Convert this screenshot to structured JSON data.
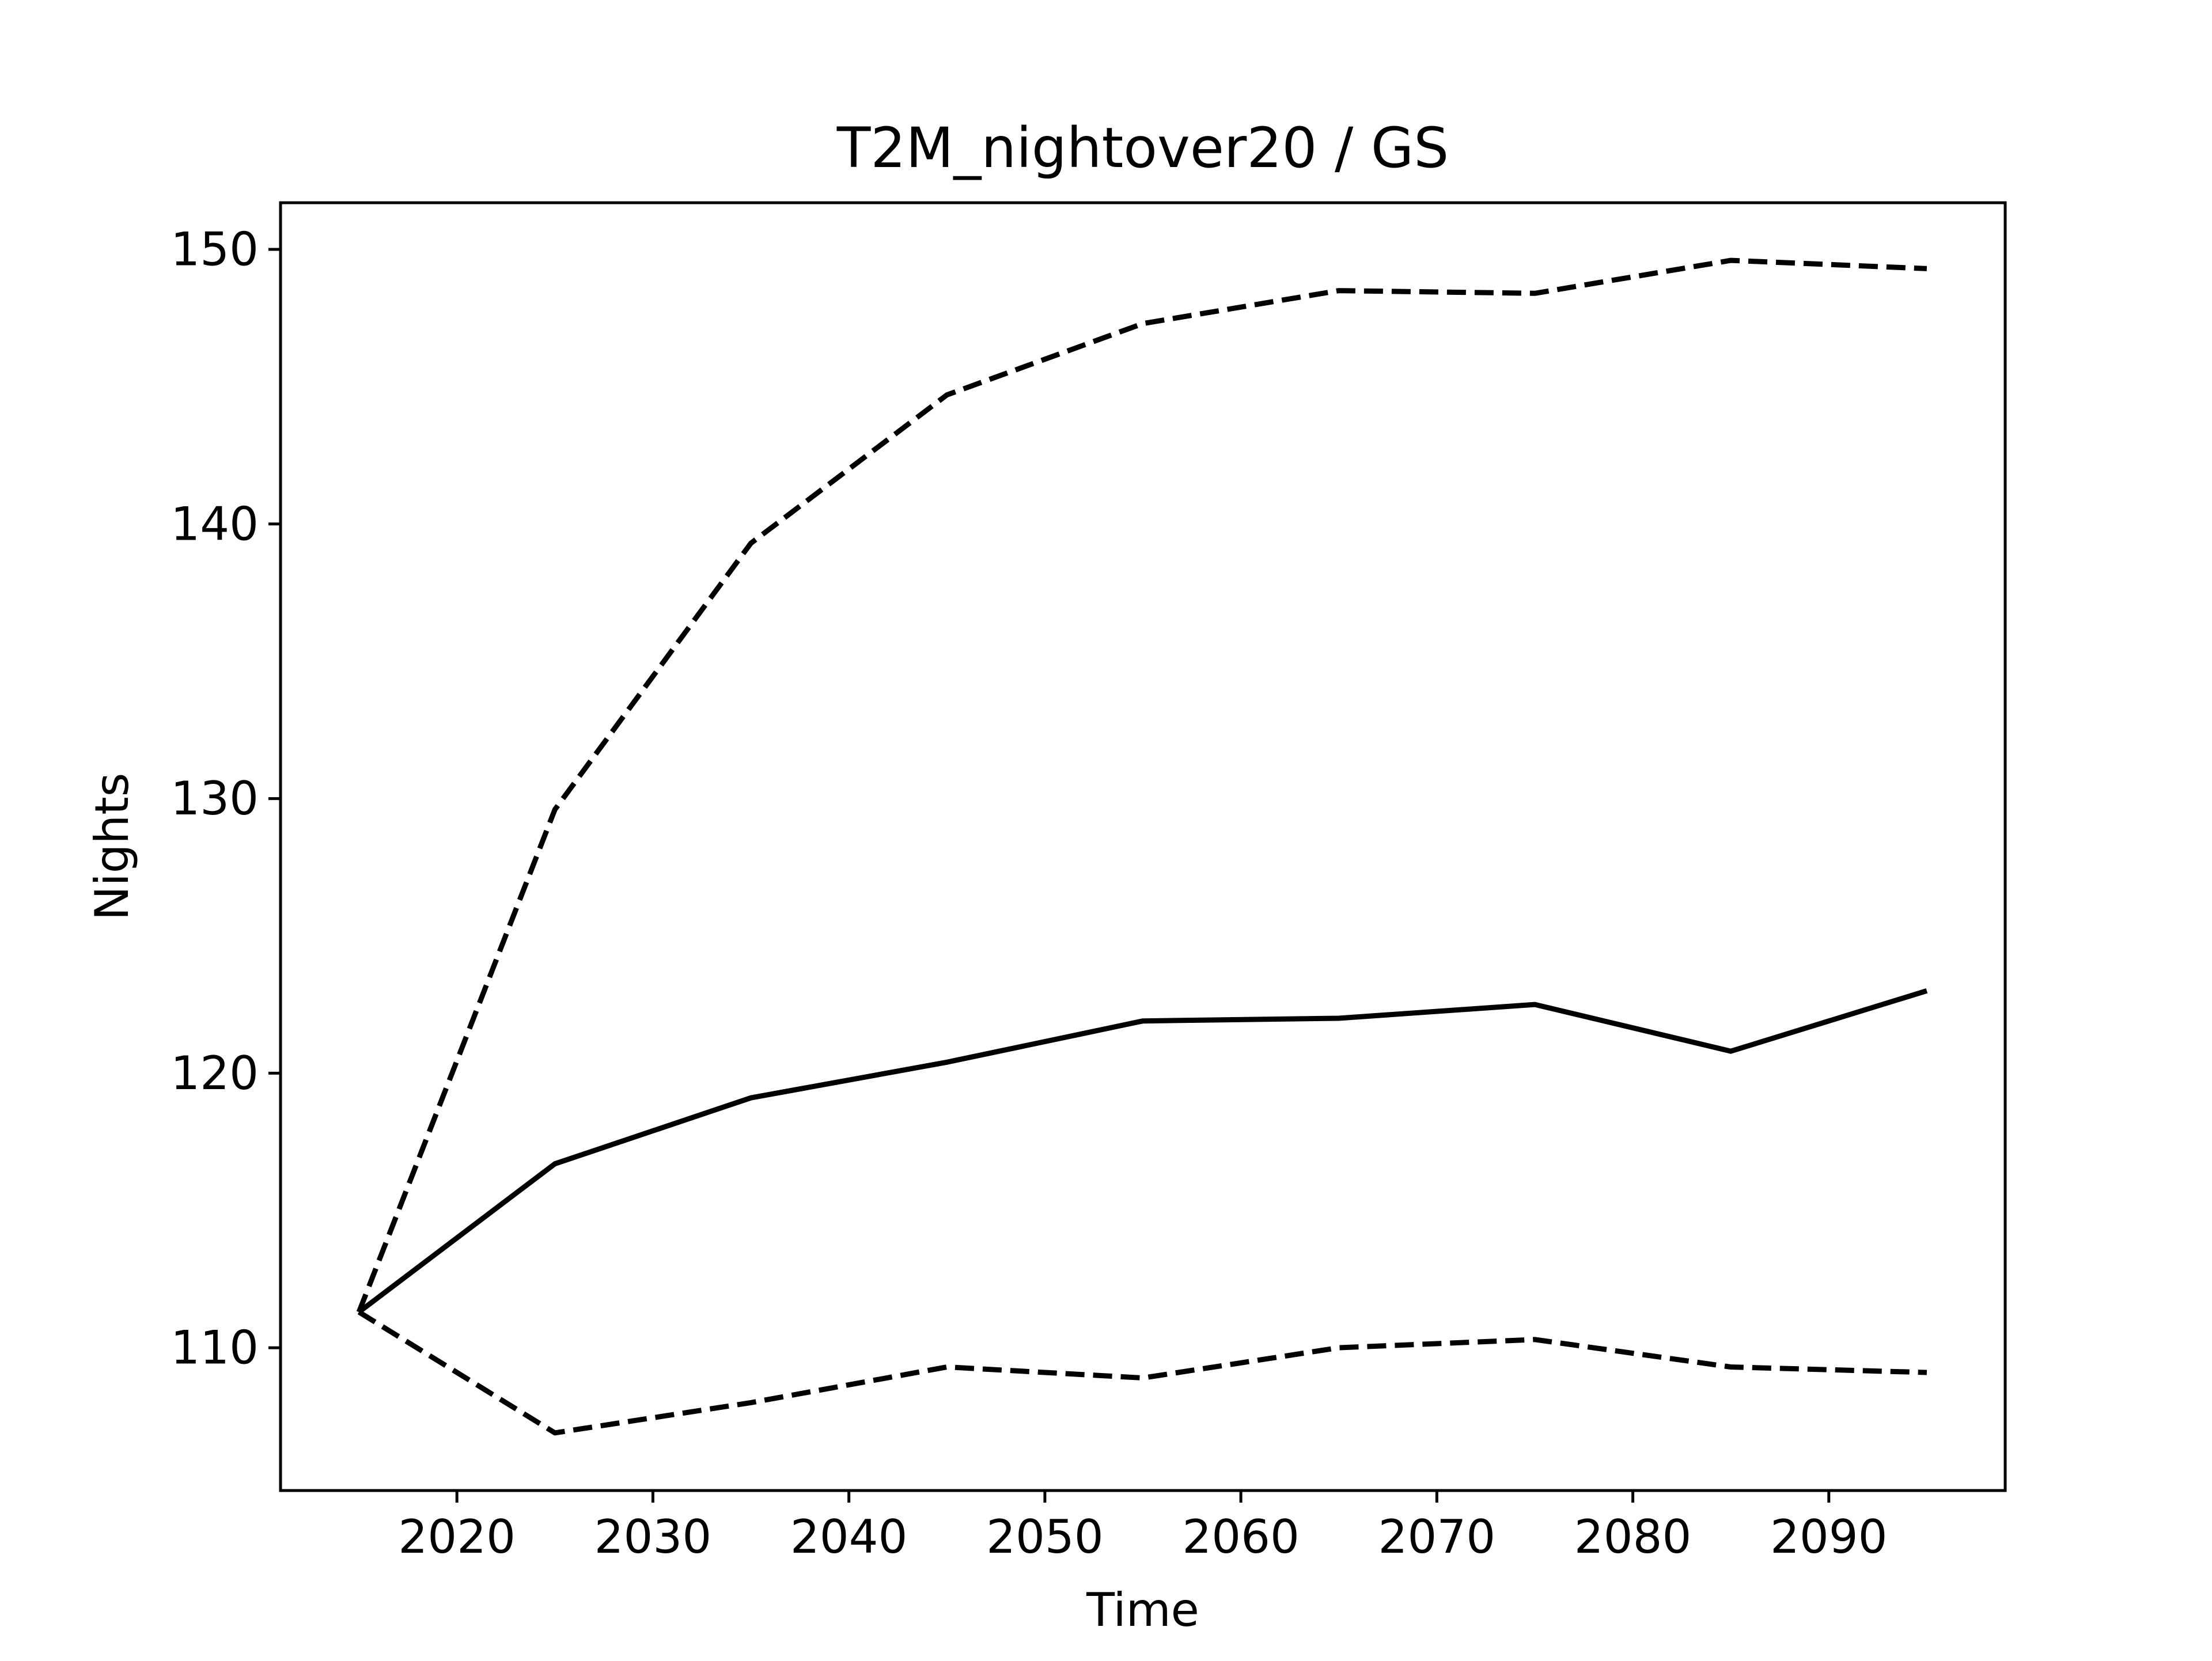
{
  "chart_data": {
    "type": "line",
    "title": "T2M_nightover20 / GS",
    "xlabel": "Time",
    "ylabel": "Nights",
    "xlim": [
      2011,
      2099
    ],
    "ylim": [
      104.8,
      151.7
    ],
    "xticks": [
      2020,
      2030,
      2040,
      2050,
      2060,
      2070,
      2080,
      2090
    ],
    "yticks": [
      110,
      120,
      130,
      140,
      150
    ],
    "grid": false,
    "legend": "none",
    "x": [
      2015,
      2025,
      2035,
      2045,
      2055,
      2065,
      2075,
      2085,
      2095
    ],
    "series": [
      {
        "style": "dashed",
        "color": "#000000",
        "values": [
          111.3,
          129.6,
          139.3,
          144.7,
          147.3,
          148.5,
          148.4,
          149.6,
          149.3
        ]
      },
      {
        "style": "solid",
        "color": "#000000",
        "values": [
          111.3,
          116.7,
          119.1,
          120.4,
          121.9,
          122.0,
          122.5,
          120.8,
          123.0
        ]
      },
      {
        "style": "dashed",
        "color": "#000000",
        "values": [
          111.3,
          106.9,
          108.0,
          109.3,
          108.9,
          110.0,
          110.3,
          109.3,
          109.1
        ]
      }
    ]
  }
}
